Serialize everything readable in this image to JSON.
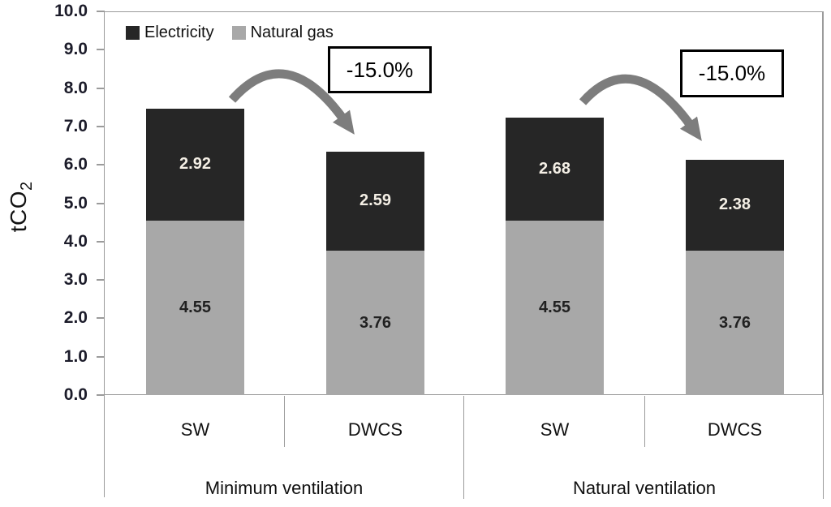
{
  "chart_data": {
    "type": "bar",
    "stacked": true,
    "ylabel_base": "tCO",
    "ylabel_sub": "2",
    "ylim": [
      0,
      10
    ],
    "yticks": [
      "10.0",
      "9.0",
      "8.0",
      "7.0",
      "6.0",
      "5.0",
      "4.0",
      "3.0",
      "2.0",
      "1.0",
      "0.0"
    ],
    "grid": false,
    "legend_position": "top-left-inside",
    "legend": [
      {
        "name": "Electricity",
        "color": "#262626"
      },
      {
        "name": "Natural gas",
        "color": "#a8a8a8"
      }
    ],
    "groups": [
      {
        "label": "Minimum ventilation",
        "annotation": "-15.0%",
        "bars": [
          {
            "category": "SW",
            "natural_gas": 4.55,
            "electricity": 2.92,
            "natural_gas_label": "4.55",
            "electricity_label": "2.92",
            "total": 7.47
          },
          {
            "category": "DWCS",
            "natural_gas": 3.76,
            "electricity": 2.59,
            "natural_gas_label": "3.76",
            "electricity_label": "2.59",
            "total": 6.35
          }
        ]
      },
      {
        "label": "Natural ventilation",
        "annotation": "-15.0%",
        "bars": [
          {
            "category": "SW",
            "natural_gas": 4.55,
            "electricity": 2.68,
            "natural_gas_label": "4.55",
            "electricity_label": "2.68",
            "total": 7.23
          },
          {
            "category": "DWCS",
            "natural_gas": 3.76,
            "electricity": 2.38,
            "natural_gas_label": "3.76",
            "electricity_label": "2.38",
            "total": 6.14
          }
        ]
      }
    ],
    "annotation_meaning": "percent reduction from SW to DWCS",
    "arrow_color": "#7d7d7d",
    "axis_color": "#9b9b9b"
  }
}
